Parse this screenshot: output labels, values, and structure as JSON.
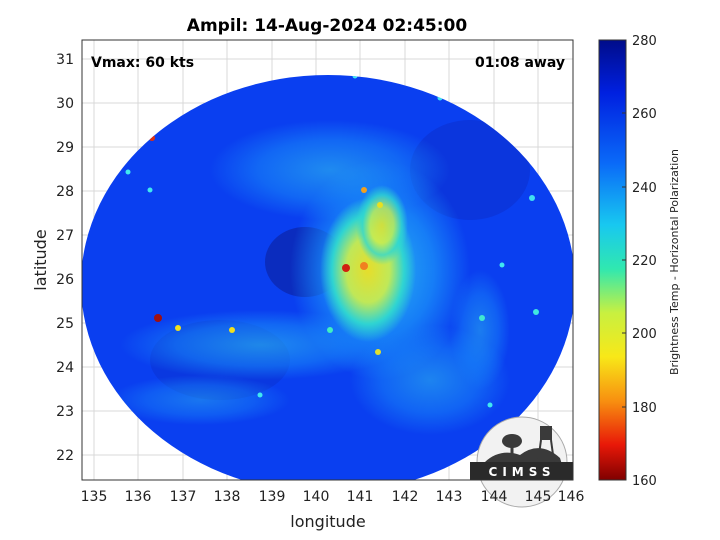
{
  "title": "Ampil: 14-Aug-2024 02:45:00",
  "vmax_label": "Vmax: 60 kts",
  "time_label": "01:08 away",
  "xlabel": "longitude",
  "ylabel": "latitude",
  "colorbar_label": "Brightness Temp - Horizontal Polarization",
  "logo_text": "CIMSS",
  "x_ticks": [
    "135",
    "136",
    "137",
    "138",
    "139",
    "140",
    "141",
    "142",
    "143",
    "144",
    "145",
    "146"
  ],
  "y_ticks": [
    "31",
    "30",
    "29",
    "28",
    "27",
    "26",
    "25",
    "24",
    "23",
    "22"
  ],
  "colorbar_ticks": [
    "280",
    "260",
    "240",
    "220",
    "200",
    "180",
    "160"
  ],
  "colors": {
    "background_blue": "#0a3ff0",
    "warm_yellow": "#f0e020",
    "hot_red": "#d02010"
  }
}
